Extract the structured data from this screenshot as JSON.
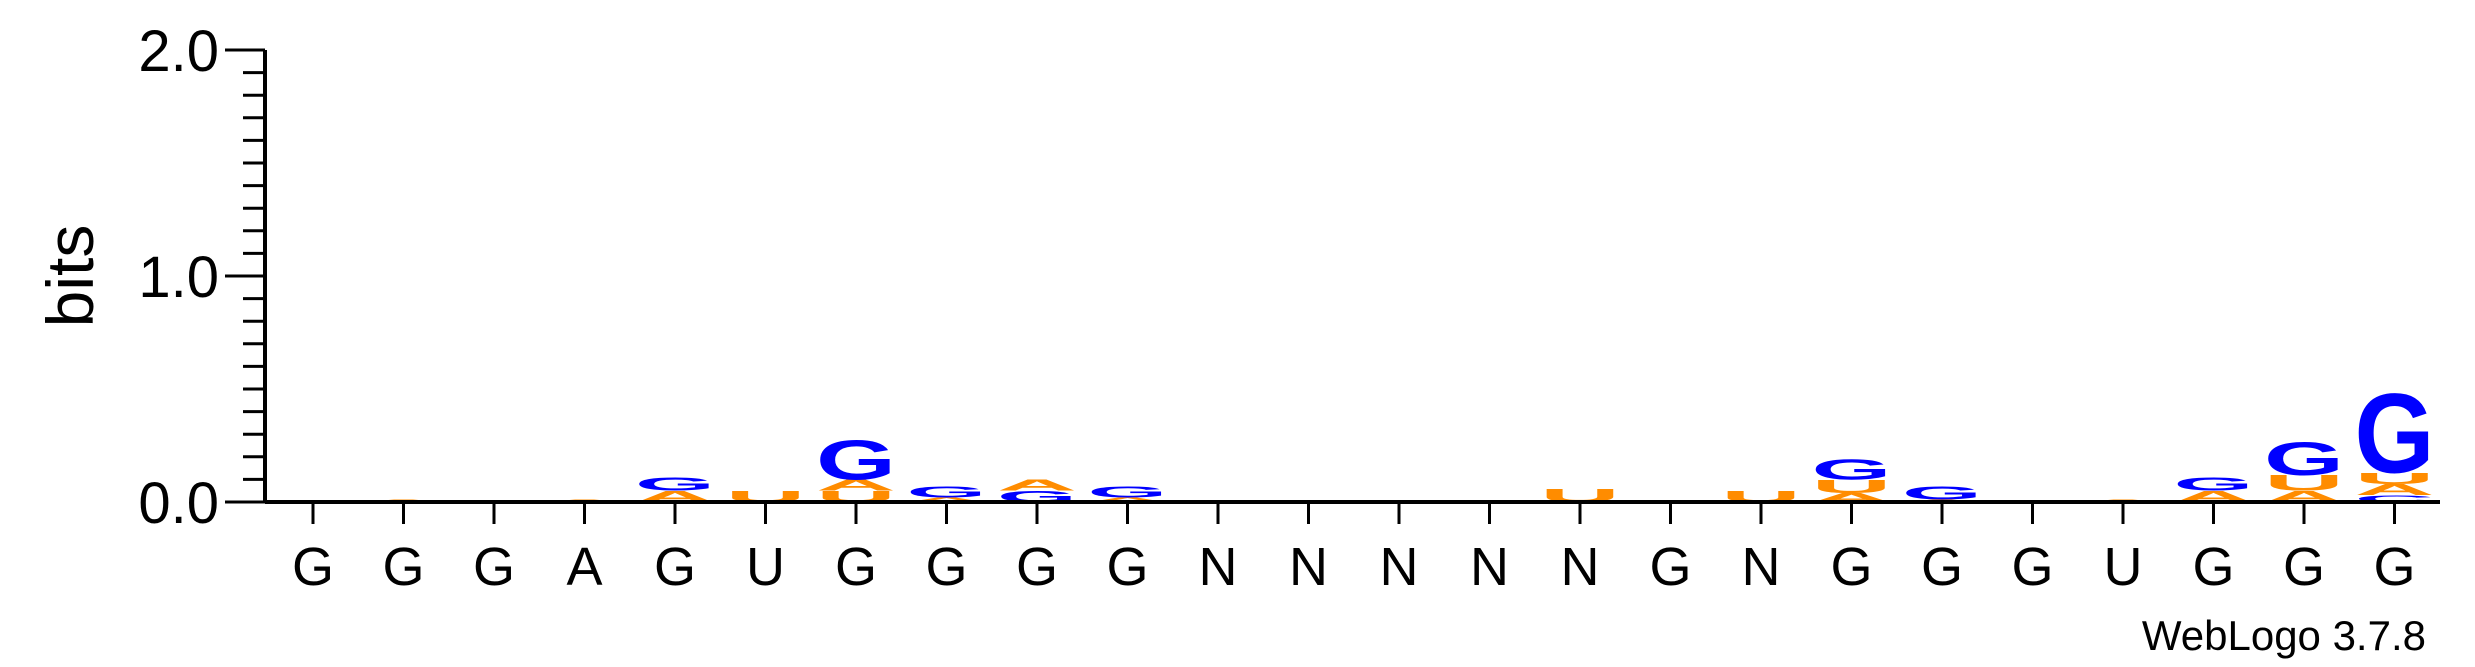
{
  "chart_data": {
    "type": "sequence-logo",
    "ylabel": "bits",
    "ylim": [
      0,
      2.0
    ],
    "y_ticks": [
      "0.0",
      "1.0",
      "2.0"
    ],
    "colors": {
      "G": "#0000ff",
      "U": "#ff8c00",
      "A": "#ff8c00",
      "C": "#0000ff"
    },
    "positions": [
      {
        "label": "G",
        "stack": []
      },
      {
        "label": "G",
        "stack": [
          [
            "A",
            0.01
          ]
        ]
      },
      {
        "label": "G",
        "stack": []
      },
      {
        "label": "A",
        "stack": [
          [
            "A",
            0.01
          ]
        ]
      },
      {
        "label": "G",
        "stack": [
          [
            "A",
            0.05
          ],
          [
            "G",
            0.06
          ]
        ]
      },
      {
        "label": "U",
        "stack": [
          [
            "U",
            0.05
          ]
        ]
      },
      {
        "label": "G",
        "stack": [
          [
            "U",
            0.05
          ],
          [
            "A",
            0.05
          ],
          [
            "G",
            0.18
          ]
        ]
      },
      {
        "label": "G",
        "stack": [
          [
            "A",
            0.02
          ],
          [
            "G",
            0.05
          ]
        ]
      },
      {
        "label": "G",
        "stack": [
          [
            "G",
            0.05
          ],
          [
            "A",
            0.05
          ]
        ]
      },
      {
        "label": "G",
        "stack": [
          [
            "A",
            0.02
          ],
          [
            "G",
            0.05
          ]
        ]
      },
      {
        "label": "N",
        "stack": []
      },
      {
        "label": "N",
        "stack": []
      },
      {
        "label": "N",
        "stack": []
      },
      {
        "label": "N",
        "stack": []
      },
      {
        "label": "N",
        "stack": [
          [
            "U",
            0.06
          ]
        ]
      },
      {
        "label": "G",
        "stack": []
      },
      {
        "label": "N",
        "stack": [
          [
            "U",
            0.05
          ]
        ]
      },
      {
        "label": "G",
        "stack": [
          [
            "A",
            0.04
          ],
          [
            "U",
            0.06
          ],
          [
            "G",
            0.09
          ]
        ]
      },
      {
        "label": "G",
        "stack": [
          [
            "A",
            0.01
          ],
          [
            "G",
            0.06
          ]
        ]
      },
      {
        "label": "G",
        "stack": []
      },
      {
        "label": "U",
        "stack": [
          [
            "A",
            0.01
          ]
        ]
      },
      {
        "label": "G",
        "stack": [
          [
            "A",
            0.05
          ],
          [
            "G",
            0.06
          ]
        ]
      },
      {
        "label": "G",
        "stack": [
          [
            "A",
            0.05
          ],
          [
            "U",
            0.07
          ],
          [
            "G",
            0.15
          ]
        ]
      },
      {
        "label": "G",
        "stack": [
          [
            "C",
            0.03
          ],
          [
            "A",
            0.05
          ],
          [
            "U",
            0.05
          ],
          [
            "G",
            0.36
          ]
        ]
      }
    ]
  },
  "credit": "WebLogo 3.7.8"
}
